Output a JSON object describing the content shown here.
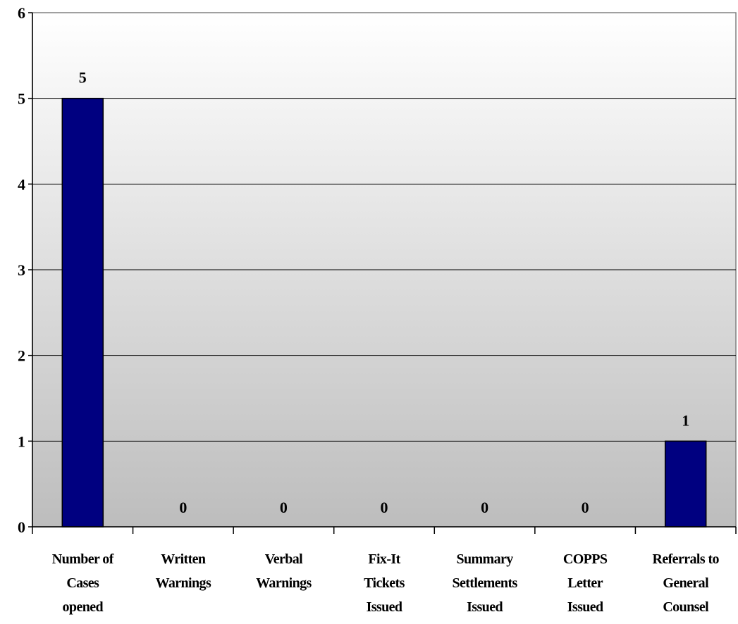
{
  "chart_data": {
    "type": "bar",
    "categories": [
      [
        "Number of",
        "Cases",
        "opened"
      ],
      [
        "Written",
        "Warnings"
      ],
      [
        "Verbal",
        "Warnings"
      ],
      [
        "Fix-It",
        "Tickets",
        "Issued"
      ],
      [
        "Summary",
        "Settlements",
        "Issued"
      ],
      [
        "COPPS",
        "Letter",
        "Issued"
      ],
      [
        "Referrals to",
        "General",
        "Counsel"
      ]
    ],
    "values": [
      5,
      0,
      0,
      0,
      0,
      0,
      1
    ],
    "data_labels": [
      "5",
      "0",
      "0",
      "0",
      "0",
      "0",
      "1"
    ],
    "y_ticks": [
      "0",
      "1",
      "2",
      "3",
      "4",
      "5",
      "6"
    ],
    "ylim": [
      0,
      6
    ],
    "grid": true,
    "legend": "none",
    "title": "",
    "xlabel": "",
    "ylabel": "",
    "colors": {
      "bar_fill": "#000080",
      "bar_stroke": "#000000",
      "plot_bg_top": "#ffffff",
      "plot_bg_bottom": "#bdbdbd",
      "gridline": "#000000",
      "axis": "#000000",
      "plot_border": "#808080"
    }
  }
}
